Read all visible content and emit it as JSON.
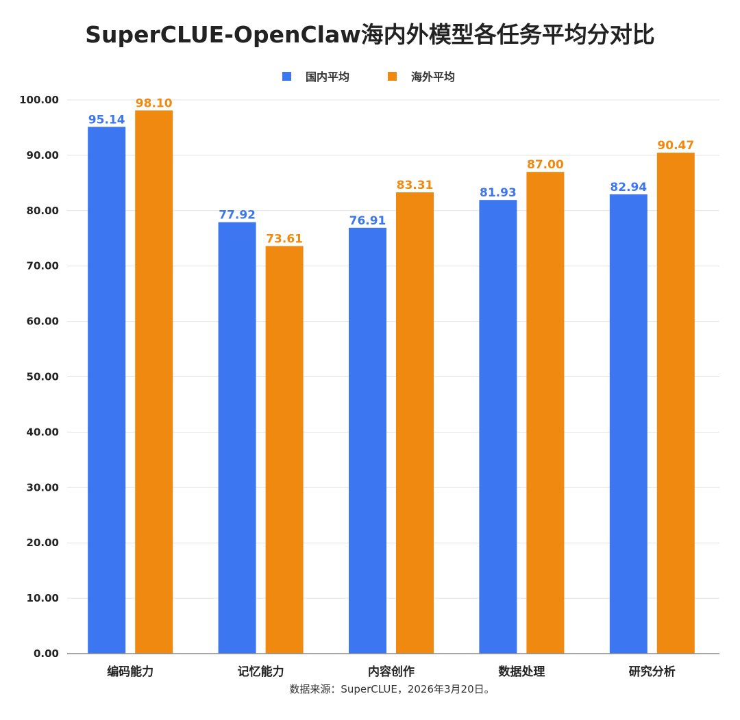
{
  "chart_data": {
    "type": "bar",
    "title": "SuperCLUE-OpenClaw海内外模型各任务平均分对比",
    "categories": [
      "编码能力",
      "记忆能力",
      "内容创作",
      "数据处理",
      "研究分析"
    ],
    "series": [
      {
        "name": "国内平均",
        "color": "#3C76F0",
        "values": [
          95.14,
          77.92,
          76.91,
          81.93,
          82.94
        ],
        "labels": [
          "95.14",
          "77.92",
          "76.91",
          "81.93",
          "82.94"
        ]
      },
      {
        "name": "海外平均",
        "color": "#F0890F",
        "values": [
          98.1,
          73.61,
          83.31,
          87.0,
          90.47
        ],
        "labels": [
          "98.10",
          "73.61",
          "83.31",
          "87.00",
          "90.47"
        ]
      }
    ],
    "ylim": [
      0,
      100
    ],
    "yticks": [
      0,
      10,
      20,
      30,
      40,
      50,
      60,
      70,
      80,
      90,
      100
    ],
    "ytick_labels": [
      "0.00",
      "10.00",
      "20.00",
      "30.00",
      "40.00",
      "50.00",
      "60.00",
      "70.00",
      "80.00",
      "90.00",
      "100.00"
    ],
    "legend_position": "top-center",
    "grid": true,
    "source_note": "数据来源：SuperCLUE，2026年3月20日。"
  }
}
